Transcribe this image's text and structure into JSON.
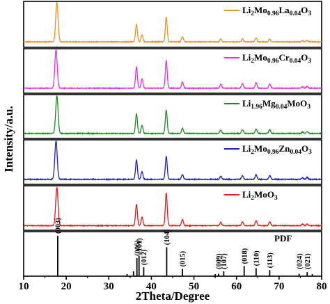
{
  "chart_data": {
    "type": "line",
    "xlabel": "2Theta/Degree",
    "ylabel": "Intensity/a.u.",
    "xlim": [
      10,
      80
    ],
    "x_ticks": [
      10,
      20,
      30,
      40,
      50,
      60,
      70,
      80
    ],
    "panels": [
      {
        "name_parts": [
          [
            "Li",
            ""
          ],
          [
            "2",
            "sub"
          ],
          [
            "Mo",
            ""
          ],
          [
            "0.96",
            "sub"
          ],
          [
            "La",
            ""
          ],
          [
            "0.04",
            "sub"
          ],
          [
            "O",
            ""
          ],
          [
            "3",
            "sub"
          ]
        ],
        "color": "#f0921e",
        "baseline": 0.05,
        "peaks": [
          [
            17.8,
            1.0
          ],
          [
            36.5,
            0.45
          ],
          [
            37.8,
            0.18
          ],
          [
            43.5,
            0.62
          ],
          [
            47.3,
            0.13
          ],
          [
            56.3,
            0.07
          ],
          [
            61.4,
            0.08
          ],
          [
            64.6,
            0.1
          ],
          [
            67.8,
            0.07
          ],
          [
            75.5,
            0.03
          ],
          [
            76.6,
            0.03
          ]
        ]
      },
      {
        "name_parts": [
          [
            "Li",
            ""
          ],
          [
            "2",
            "sub"
          ],
          [
            "Mo",
            ""
          ],
          [
            "0.96",
            "sub"
          ],
          [
            "Cr",
            ""
          ],
          [
            "0.04",
            "sub"
          ],
          [
            "O",
            ""
          ],
          [
            "3",
            "sub"
          ]
        ],
        "color": "#e62de6",
        "baseline": 0.04,
        "peaks": [
          [
            17.6,
            1.0
          ],
          [
            36.5,
            0.55
          ],
          [
            37.8,
            0.25
          ],
          [
            43.5,
            0.72
          ],
          [
            47.3,
            0.16
          ],
          [
            56.3,
            0.1
          ],
          [
            61.4,
            0.12
          ],
          [
            64.6,
            0.14
          ],
          [
            67.8,
            0.11
          ],
          [
            75.5,
            0.04
          ],
          [
            76.6,
            0.05
          ]
        ]
      },
      {
        "name_parts": [
          [
            "Li",
            ""
          ],
          [
            "1.96",
            "sub"
          ],
          [
            "Mg",
            ""
          ],
          [
            "0.04",
            "sub"
          ],
          [
            "MoO",
            ""
          ],
          [
            "3",
            "sub"
          ]
        ],
        "color": "#1f8a1f",
        "baseline": 0.04,
        "peaks": [
          [
            17.8,
            1.0
          ],
          [
            36.5,
            0.52
          ],
          [
            37.8,
            0.22
          ],
          [
            43.5,
            0.62
          ],
          [
            47.3,
            0.14
          ],
          [
            56.3,
            0.09
          ],
          [
            61.4,
            0.1
          ],
          [
            64.6,
            0.12
          ],
          [
            67.8,
            0.1
          ],
          [
            75.5,
            0.04
          ],
          [
            76.6,
            0.05
          ]
        ]
      },
      {
        "name_parts": [
          [
            "Li",
            ""
          ],
          [
            "2",
            "sub"
          ],
          [
            "Mo",
            ""
          ],
          [
            "0.96",
            "sub"
          ],
          [
            "Zn",
            ""
          ],
          [
            "0.04",
            "sub"
          ],
          [
            "O",
            ""
          ],
          [
            "3",
            "sub"
          ]
        ],
        "color": "#1c1cc8",
        "baseline": 0.04,
        "peaks": [
          [
            17.6,
            1.0
          ],
          [
            36.5,
            0.5
          ],
          [
            37.8,
            0.2
          ],
          [
            43.5,
            0.6
          ],
          [
            47.3,
            0.13
          ],
          [
            56.3,
            0.08
          ],
          [
            61.4,
            0.1
          ],
          [
            64.6,
            0.12
          ],
          [
            67.8,
            0.1
          ],
          [
            75.5,
            0.04
          ],
          [
            76.6,
            0.05
          ]
        ]
      },
      {
        "name_parts": [
          [
            "Li",
            ""
          ],
          [
            "2",
            "sub"
          ],
          [
            "MoO",
            ""
          ],
          [
            "3",
            "sub"
          ]
        ],
        "color": "#e11b1b",
        "baseline": 0.03,
        "peaks": [
          [
            17.8,
            1.0
          ],
          [
            36.5,
            0.55
          ],
          [
            37.8,
            0.22
          ],
          [
            43.5,
            0.85
          ],
          [
            47.3,
            0.16
          ],
          [
            56.3,
            0.08
          ],
          [
            61.4,
            0.1
          ],
          [
            64.6,
            0.13
          ],
          [
            67.8,
            0.1
          ],
          [
            75.5,
            0.04
          ],
          [
            76.6,
            0.04
          ]
        ]
      }
    ],
    "reference": {
      "name": "PDF",
      "lines": [
        {
          "x": 18.0,
          "h": 1.0,
          "label": "(003)"
        },
        {
          "x": 34.3,
          "h": 0.05,
          "label": ""
        },
        {
          "x": 35.8,
          "h": 0.12,
          "label": ""
        },
        {
          "x": 36.6,
          "h": 0.45,
          "label": "(006)"
        },
        {
          "x": 37.1,
          "h": 0.5,
          "label": "(101)"
        },
        {
          "x": 38.2,
          "h": 0.22,
          "label": "(012)"
        },
        {
          "x": 43.6,
          "h": 0.72,
          "label": "(104)"
        },
        {
          "x": 47.3,
          "h": 0.18,
          "label": "(015)"
        },
        {
          "x": 55.0,
          "h": 0.05,
          "label": ""
        },
        {
          "x": 55.8,
          "h": 0.06,
          "label": "(009)"
        },
        {
          "x": 57.0,
          "h": 0.12,
          "label": "(107)"
        },
        {
          "x": 61.8,
          "h": 0.25,
          "label": "(018)"
        },
        {
          "x": 64.6,
          "h": 0.2,
          "label": "(110)"
        },
        {
          "x": 67.8,
          "h": 0.15,
          "label": "(113)"
        },
        {
          "x": 74.7,
          "h": 0.06,
          "label": "(024)"
        },
        {
          "x": 76.6,
          "h": 0.1,
          "label": "(021)"
        },
        {
          "x": 77.8,
          "h": 0.05,
          "label": ""
        }
      ]
    }
  }
}
